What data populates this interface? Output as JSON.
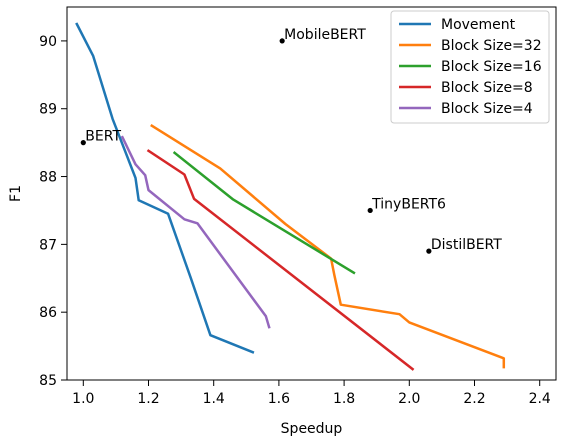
{
  "chart_data": {
    "type": "line",
    "title": "",
    "xlabel": "Speedup",
    "ylabel": "F1",
    "xlim": [
      0.95,
      2.45
    ],
    "ylim": [
      85,
      90.5
    ],
    "xticks": [
      1.0,
      1.2,
      1.4,
      1.6,
      1.8,
      2.0,
      2.2,
      2.4
    ],
    "xtick_labels": [
      "1.0",
      "1.2",
      "1.4",
      "1.6",
      "1.8",
      "2.0",
      "2.2",
      "2.4"
    ],
    "yticks": [
      85,
      86,
      87,
      88,
      89,
      90
    ],
    "ytick_labels": [
      "85",
      "86",
      "87",
      "88",
      "89",
      "90"
    ],
    "grid": false,
    "legend_position": "top-right",
    "series": [
      {
        "name": "Movement",
        "color": "#1f77b4",
        "x": [
          0.98,
          1.03,
          1.09,
          1.16,
          1.17,
          1.26,
          1.33,
          1.39,
          1.52
        ],
        "y": [
          90.25,
          89.78,
          88.85,
          87.98,
          87.65,
          87.45,
          86.5,
          85.66,
          85.41
        ]
      },
      {
        "name": "Block Size=32",
        "color": "#ff7f0e",
        "x": [
          1.21,
          1.42,
          1.62,
          1.76,
          1.77,
          1.79,
          1.97,
          2.0,
          2.29,
          2.29
        ],
        "y": [
          88.75,
          88.12,
          87.3,
          86.79,
          86.55,
          86.11,
          85.97,
          85.85,
          85.32,
          85.19
        ]
      },
      {
        "name": "Block Size=16",
        "color": "#2ca02c",
        "x": [
          1.28,
          1.46,
          1.83
        ],
        "y": [
          88.35,
          87.66,
          86.58
        ]
      },
      {
        "name": "Block Size=8",
        "color": "#d62728",
        "x": [
          1.2,
          1.31,
          1.34,
          2.01
        ],
        "y": [
          88.38,
          88.03,
          87.67,
          85.16
        ]
      },
      {
        "name": "Block Size=4",
        "color": "#9467bd",
        "x": [
          1.12,
          1.16,
          1.19,
          1.2,
          1.31,
          1.35,
          1.56,
          1.57
        ],
        "y": [
          88.58,
          88.18,
          88.02,
          87.8,
          87.37,
          87.31,
          85.94,
          85.78
        ]
      }
    ],
    "points": [
      {
        "label": "BERT",
        "x": 1.0,
        "y": 88.5
      },
      {
        "label": "MobileBERT",
        "x": 1.61,
        "y": 90.0
      },
      {
        "label": "TinyBERT6",
        "x": 1.88,
        "y": 87.5
      },
      {
        "label": "DistilBERT",
        "x": 2.06,
        "y": 86.9
      }
    ]
  }
}
